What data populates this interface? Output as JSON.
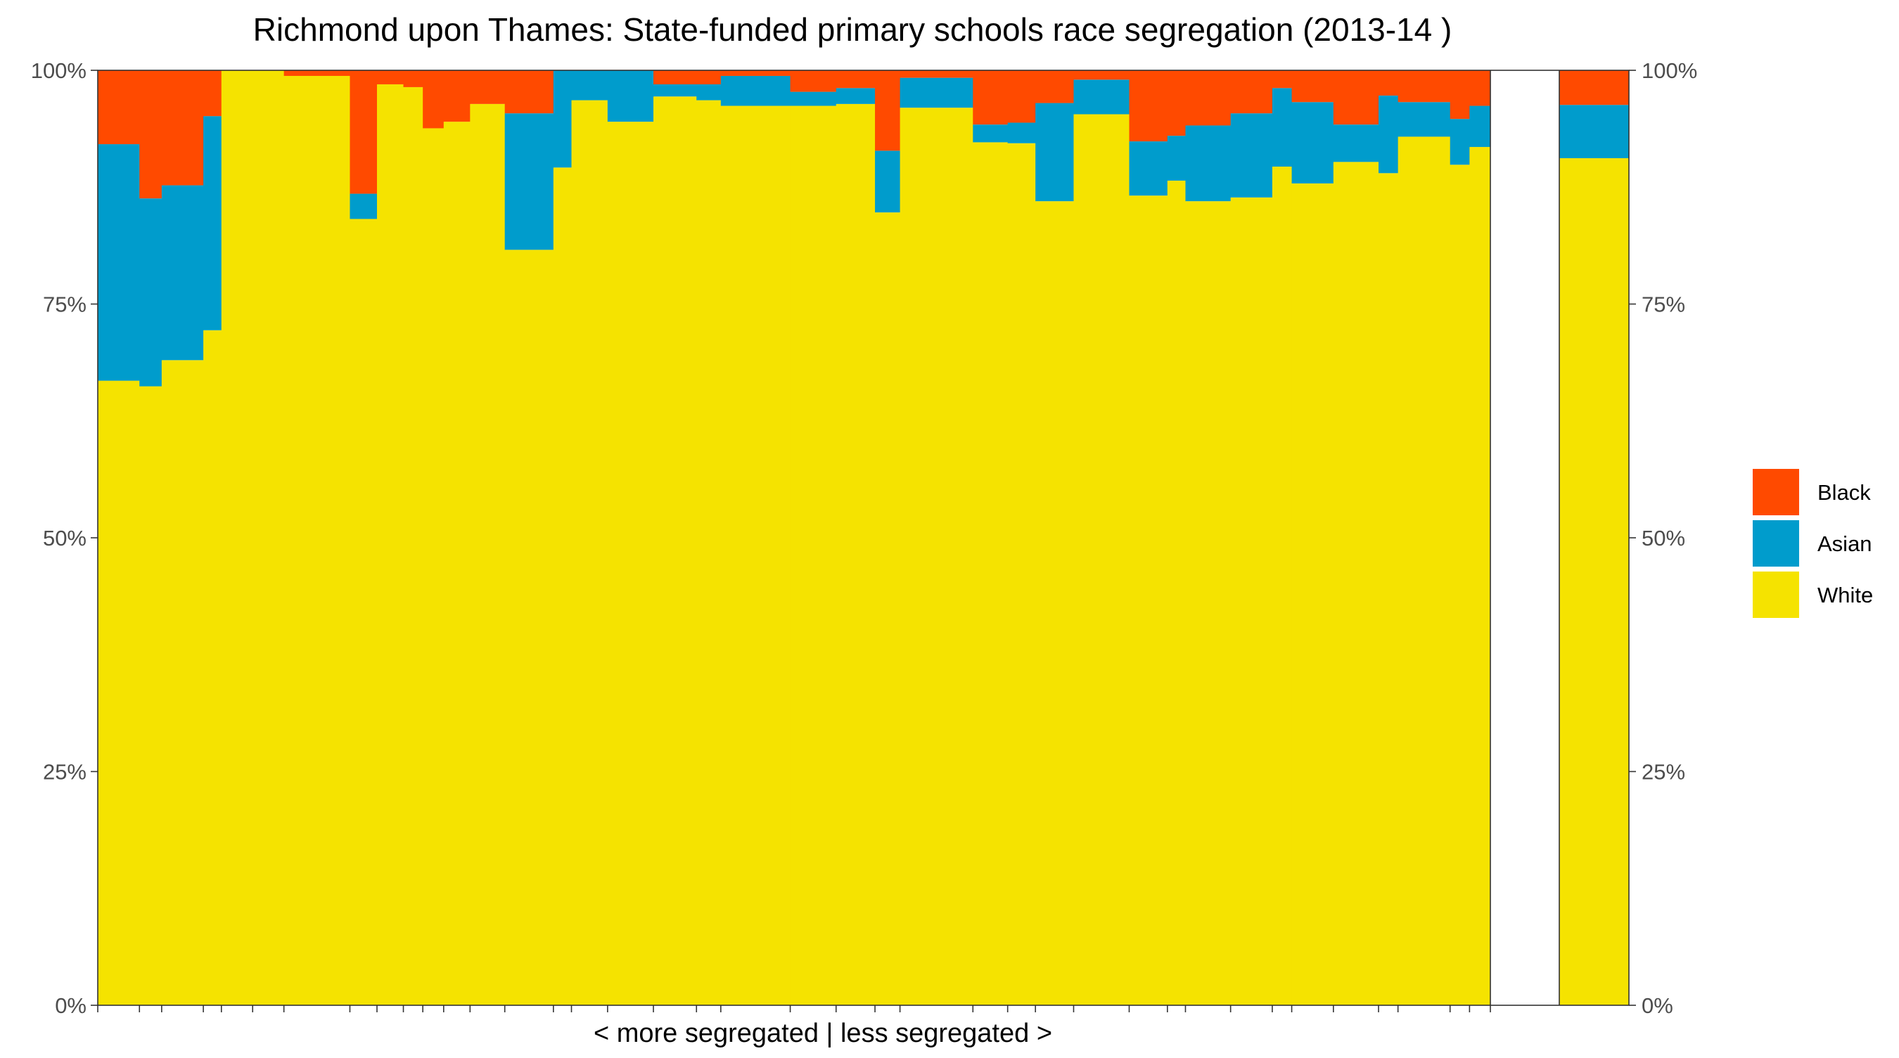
{
  "chart_data": {
    "type": "bar",
    "stacked": true,
    "percent": true,
    "title": "Richmond upon Thames: State-funded primary schools race segregation (2013-14 )",
    "xlabel": "< more segregated | less segregated >",
    "ylabel": "",
    "ylim": [
      0,
      1
    ],
    "y_ticks": [
      "0%",
      "25%",
      "50%",
      "75%",
      "100%"
    ],
    "grid": false,
    "legend_position": "right",
    "legend": [
      "Black",
      "Asian",
      "White"
    ],
    "colors": {
      "White": "#f5e300",
      "Asian": "#009ccc",
      "Black": "#ff4a00"
    },
    "series_order": [
      "White",
      "Asian",
      "Black"
    ],
    "schools": [
      {
        "width": 6.0,
        "White": 0.668,
        "Asian": 0.253,
        "Black": 0.079
      },
      {
        "width": 3.2,
        "White": 0.662,
        "Asian": 0.201,
        "Black": 0.137
      },
      {
        "width": 6.0,
        "White": 0.69,
        "Asian": 0.187,
        "Black": 0.123
      },
      {
        "width": 2.6,
        "White": 0.722,
        "Asian": 0.229,
        "Black": 0.049
      },
      {
        "width": 4.5,
        "White": 1.0,
        "Asian": 0.0,
        "Black": 0.0
      },
      {
        "width": 4.5,
        "White": 1.0,
        "Asian": 0.0,
        "Black": 0.0
      },
      {
        "width": 9.5,
        "White": 0.994,
        "Asian": 0.0,
        "Black": 0.006
      },
      {
        "width": 3.9,
        "White": 0.841,
        "Asian": 0.027,
        "Black": 0.132
      },
      {
        "width": 3.8,
        "White": 0.985,
        "Asian": 0.0,
        "Black": 0.015
      },
      {
        "width": 2.8,
        "White": 0.982,
        "Asian": 0.0,
        "Black": 0.018
      },
      {
        "width": 3.0,
        "White": 0.938,
        "Asian": 0.0,
        "Black": 0.062
      },
      {
        "width": 3.8,
        "White": 0.945,
        "Asian": 0.0,
        "Black": 0.055
      },
      {
        "width": 5.0,
        "White": 0.964,
        "Asian": 0.0,
        "Black": 0.036
      },
      {
        "width": 7.0,
        "White": 0.808,
        "Asian": 0.146,
        "Black": 0.046
      },
      {
        "width": 2.6,
        "White": 0.896,
        "Asian": 0.104,
        "Black": 0.0
      },
      {
        "width": 5.2,
        "White": 0.968,
        "Asian": 0.032,
        "Black": 0.0
      },
      {
        "width": 6.6,
        "White": 0.945,
        "Asian": 0.055,
        "Black": 0.0
      },
      {
        "width": 6.2,
        "White": 0.972,
        "Asian": 0.013,
        "Black": 0.015
      },
      {
        "width": 3.5,
        "White": 0.968,
        "Asian": 0.017,
        "Black": 0.015
      },
      {
        "width": 10.0,
        "White": 0.962,
        "Asian": 0.032,
        "Black": 0.006
      },
      {
        "width": 6.6,
        "White": 0.962,
        "Asian": 0.015,
        "Black": 0.023
      },
      {
        "width": 5.6,
        "White": 0.964,
        "Asian": 0.017,
        "Black": 0.019
      },
      {
        "width": 3.6,
        "White": 0.848,
        "Asian": 0.066,
        "Black": 0.086
      },
      {
        "width": 10.5,
        "White": 0.96,
        "Asian": 0.032,
        "Black": 0.008
      },
      {
        "width": 5.0,
        "White": 0.923,
        "Asian": 0.019,
        "Black": 0.058
      },
      {
        "width": 4.0,
        "White": 0.922,
        "Asian": 0.022,
        "Black": 0.056
      },
      {
        "width": 5.5,
        "White": 0.86,
        "Asian": 0.105,
        "Black": 0.035
      },
      {
        "width": 8.0,
        "White": 0.953,
        "Asian": 0.037,
        "Black": 0.01
      },
      {
        "width": 5.5,
        "White": 0.866,
        "Asian": 0.058,
        "Black": 0.076
      },
      {
        "width": 2.6,
        "White": 0.882,
        "Asian": 0.048,
        "Black": 0.07
      },
      {
        "width": 6.5,
        "White": 0.86,
        "Asian": 0.081,
        "Black": 0.059
      },
      {
        "width": 6.0,
        "White": 0.864,
        "Asian": 0.09,
        "Black": 0.046
      },
      {
        "width": 2.8,
        "White": 0.897,
        "Asian": 0.084,
        "Black": 0.019
      },
      {
        "width": 6.0,
        "White": 0.879,
        "Asian": 0.087,
        "Black": 0.034
      },
      {
        "width": 6.5,
        "White": 0.902,
        "Asian": 0.04,
        "Black": 0.058
      },
      {
        "width": 2.8,
        "White": 0.89,
        "Asian": 0.083,
        "Black": 0.027
      },
      {
        "width": 7.5,
        "White": 0.929,
        "Asian": 0.037,
        "Black": 0.034
      },
      {
        "width": 2.8,
        "White": 0.899,
        "Asian": 0.049,
        "Black": 0.052
      },
      {
        "width": 3.0,
        "White": 0.918,
        "Asian": 0.044,
        "Black": 0.038
      }
    ],
    "total_label": "",
    "total": {
      "White": 0.906,
      "Asian": 0.057,
      "Black": 0.037
    }
  }
}
